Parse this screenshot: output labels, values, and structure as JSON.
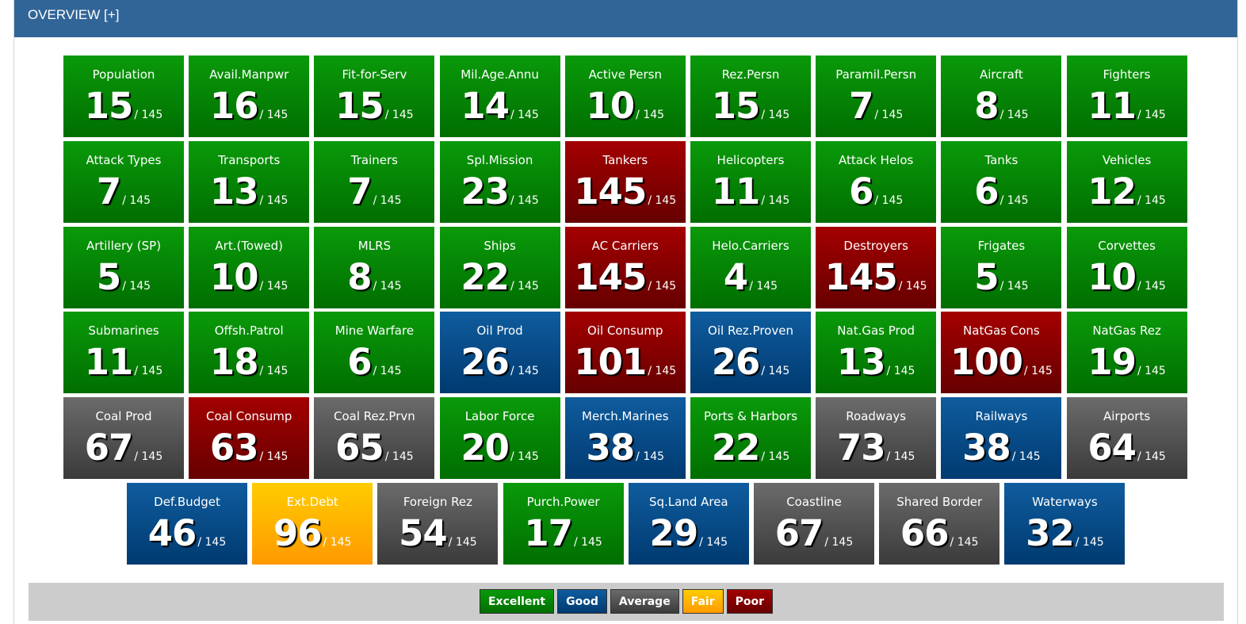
{
  "header": {
    "title": "OVERVIEW [+]"
  },
  "colors": {
    "excellent": "#008800",
    "good": "#004a87",
    "average": "#505050",
    "fair": "#ffb400",
    "poor": "#880000",
    "header": "#326597"
  },
  "total": "/ 145",
  "rows": [
    [
      {
        "label": "Population",
        "rank": "15",
        "rating": "excellent"
      },
      {
        "label": "Avail.Manpwr",
        "rank": "16",
        "rating": "excellent"
      },
      {
        "label": "Fit-for-Serv",
        "rank": "15",
        "rating": "excellent"
      },
      {
        "label": "Mil.Age.Annu",
        "rank": "14",
        "rating": "excellent"
      },
      {
        "label": "Active Persn",
        "rank": "10",
        "rating": "excellent"
      },
      {
        "label": "Rez.Persn",
        "rank": "15",
        "rating": "excellent"
      },
      {
        "label": "Paramil.Persn",
        "rank": "7",
        "rating": "excellent"
      },
      {
        "label": "Aircraft",
        "rank": "8",
        "rating": "excellent"
      },
      {
        "label": "Fighters",
        "rank": "11",
        "rating": "excellent"
      }
    ],
    [
      {
        "label": "Attack Types",
        "rank": "7",
        "rating": "excellent"
      },
      {
        "label": "Transports",
        "rank": "13",
        "rating": "excellent"
      },
      {
        "label": "Trainers",
        "rank": "7",
        "rating": "excellent"
      },
      {
        "label": "Spl.Mission",
        "rank": "23",
        "rating": "excellent"
      },
      {
        "label": "Tankers",
        "rank": "145",
        "rating": "poor"
      },
      {
        "label": "Helicopters",
        "rank": "11",
        "rating": "excellent"
      },
      {
        "label": "Attack Helos",
        "rank": "6",
        "rating": "excellent"
      },
      {
        "label": "Tanks",
        "rank": "6",
        "rating": "excellent"
      },
      {
        "label": "Vehicles",
        "rank": "12",
        "rating": "excellent"
      }
    ],
    [
      {
        "label": "Artillery (SP)",
        "rank": "5",
        "rating": "excellent"
      },
      {
        "label": "Art.(Towed)",
        "rank": "10",
        "rating": "excellent"
      },
      {
        "label": "MLRS",
        "rank": "8",
        "rating": "excellent"
      },
      {
        "label": "Ships",
        "rank": "22",
        "rating": "excellent"
      },
      {
        "label": "AC Carriers",
        "rank": "145",
        "rating": "poor"
      },
      {
        "label": "Helo.Carriers",
        "rank": "4",
        "rating": "excellent"
      },
      {
        "label": "Destroyers",
        "rank": "145",
        "rating": "poor"
      },
      {
        "label": "Frigates",
        "rank": "5",
        "rating": "excellent"
      },
      {
        "label": "Corvettes",
        "rank": "10",
        "rating": "excellent"
      }
    ],
    [
      {
        "label": "Submarines",
        "rank": "11",
        "rating": "excellent"
      },
      {
        "label": "Offsh.Patrol",
        "rank": "18",
        "rating": "excellent"
      },
      {
        "label": "Mine Warfare",
        "rank": "6",
        "rating": "excellent"
      },
      {
        "label": "Oil Prod",
        "rank": "26",
        "rating": "good"
      },
      {
        "label": "Oil Consump",
        "rank": "101",
        "rating": "poor"
      },
      {
        "label": "Oil Rez.Proven",
        "rank": "26",
        "rating": "good"
      },
      {
        "label": "Nat.Gas Prod",
        "rank": "13",
        "rating": "excellent"
      },
      {
        "label": "NatGas Cons",
        "rank": "100",
        "rating": "poor"
      },
      {
        "label": "NatGas Rez",
        "rank": "19",
        "rating": "excellent"
      }
    ],
    [
      {
        "label": "Coal Prod",
        "rank": "67",
        "rating": "average"
      },
      {
        "label": "Coal Consump",
        "rank": "63",
        "rating": "poor"
      },
      {
        "label": "Coal Rez.Prvn",
        "rank": "65",
        "rating": "average"
      },
      {
        "label": "Labor Force",
        "rank": "20",
        "rating": "excellent"
      },
      {
        "label": "Merch.Marines",
        "rank": "38",
        "rating": "good"
      },
      {
        "label": "Ports & Harbors",
        "rank": "22",
        "rating": "excellent"
      },
      {
        "label": "Roadways",
        "rank": "73",
        "rating": "average"
      },
      {
        "label": "Railways",
        "rank": "38",
        "rating": "good"
      },
      {
        "label": "Airports",
        "rank": "64",
        "rating": "average"
      }
    ],
    [
      {
        "label": "Def.Budget",
        "rank": "46",
        "rating": "good"
      },
      {
        "label": "Ext.Debt",
        "rank": "96",
        "rating": "fair"
      },
      {
        "label": "Foreign Rez",
        "rank": "54",
        "rating": "average"
      },
      {
        "label": "Purch.Power",
        "rank": "17",
        "rating": "excellent"
      },
      {
        "label": "Sq.Land Area",
        "rank": "29",
        "rating": "good"
      },
      {
        "label": "Coastline",
        "rank": "67",
        "rating": "average"
      },
      {
        "label": "Shared Border",
        "rank": "66",
        "rating": "average"
      },
      {
        "label": "Waterways",
        "rank": "32",
        "rating": "good"
      }
    ]
  ],
  "legend": [
    {
      "label": "Excellent",
      "rating": "excellent"
    },
    {
      "label": "Good",
      "rating": "good"
    },
    {
      "label": "Average",
      "rating": "average"
    },
    {
      "label": "Fair",
      "rating": "fair"
    },
    {
      "label": "Poor",
      "rating": "poor"
    }
  ]
}
